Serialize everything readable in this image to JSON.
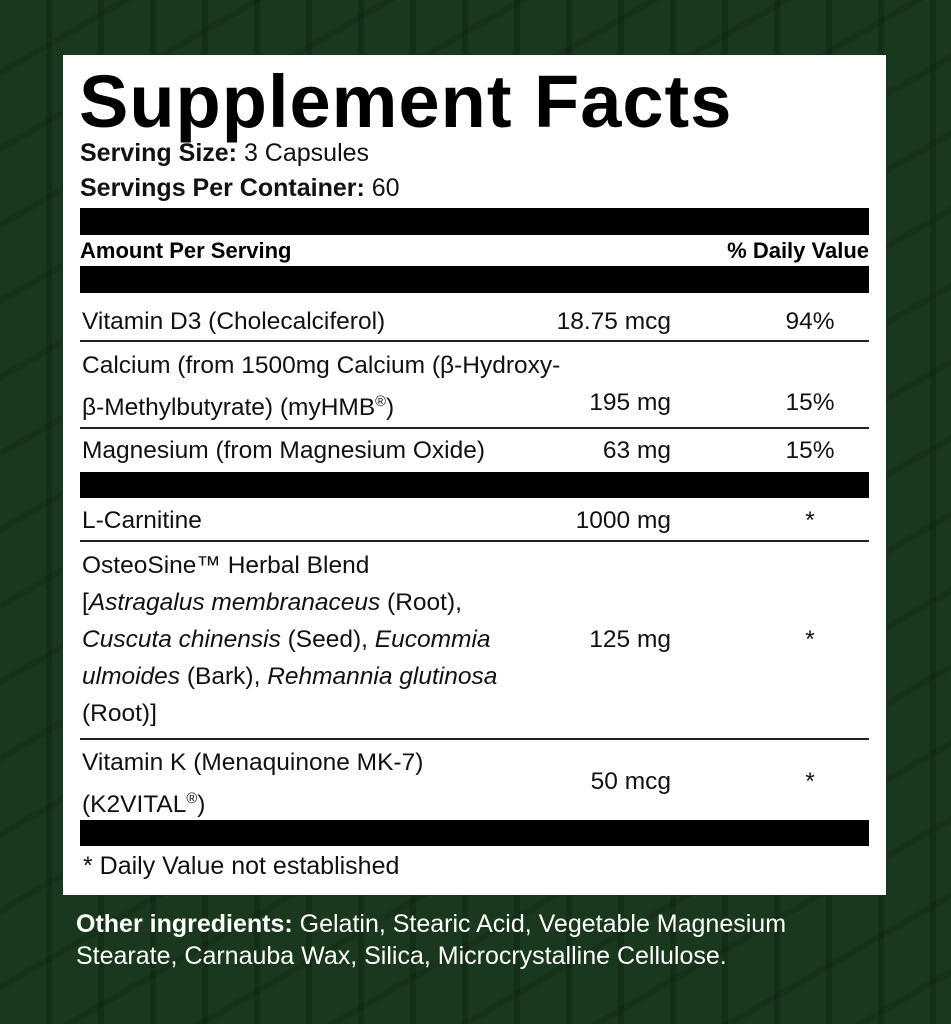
{
  "title": "Supplement Facts",
  "serving_size": {
    "label": "Serving Size:",
    "value": "3 Capsules"
  },
  "servings_per_container": {
    "label": "Servings Per Container:",
    "value": "60"
  },
  "header": {
    "amount": "Amount Per Serving",
    "dv": "% Daily Value"
  },
  "rows": [
    {
      "name": "Vitamin D3 (Cholecalciferol)",
      "amount": "18.75 mcg",
      "dv": "94%"
    },
    {
      "name_line1": "Calcium (from 1500mg Calcium (β-Hydroxy-",
      "name_line2": "β-Methylbutyrate) (myHMB",
      "reg": "®",
      ")": ")",
      "amount": "195 mg",
      "dv": "15%"
    },
    {
      "name": "Magnesium (from Magnesium Oxide)",
      "amount": "63 mg",
      "dv": "15%"
    },
    {
      "name": "L-Carnitine",
      "amount": "1000 mg",
      "dv": "*"
    },
    {
      "parts": [
        "OsteoSine™ Herbal Blend",
        "[",
        "Astragalus membranaceus",
        " (Root),",
        "Cuscuta chinensis",
        " (Seed), ",
        "Eucommia",
        "ulmoides",
        " (Bark), ",
        "Rehmannia glutinosa",
        "(Root)]"
      ],
      "amount": "125 mg",
      "dv": "*"
    },
    {
      "name_line1": "Vitamin K (Menaquinone MK-7)",
      "name_line2": "(K2VITAL",
      "reg": "®",
      ")": ")",
      "amount": "50 mcg",
      "dv": "*"
    }
  ],
  "footnote": "* Daily Value not established",
  "other_ingredients": {
    "label": "Other ingredients:",
    "value": " Gelatin, Stearic Acid, Vegetable Magnesium Stearate, Carnauba Wax, Silica, Microcrystalline Cellulose."
  }
}
